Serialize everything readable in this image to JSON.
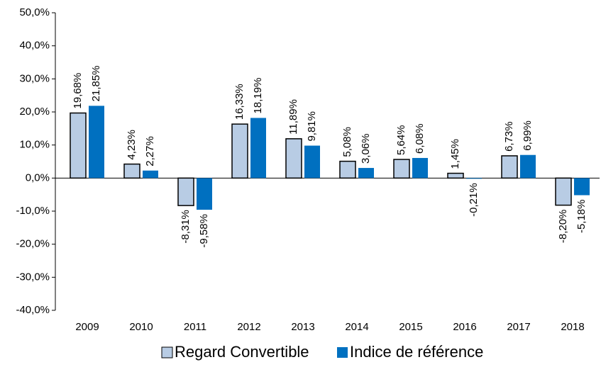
{
  "chart_data": {
    "type": "bar",
    "categories": [
      "2009",
      "2010",
      "2011",
      "2012",
      "2013",
      "2014",
      "2015",
      "2016",
      "2017",
      "2018"
    ],
    "series": [
      {
        "name": "Regard Convertible",
        "color": "#b8cce4",
        "values": [
          19.68,
          4.23,
          -8.31,
          16.33,
          11.89,
          5.08,
          5.64,
          1.45,
          6.73,
          -8.2
        ],
        "value_labels": [
          "19,68%",
          "4,23%",
          "-8,31%",
          "16,33%",
          "11,89%",
          "5,08%",
          "5,64%",
          "1,45%",
          "6,73%",
          "-8,20%"
        ]
      },
      {
        "name": "Indice de référence",
        "color": "#0070c0",
        "values": [
          21.85,
          2.27,
          -9.58,
          18.19,
          9.81,
          3.06,
          6.08,
          -0.21,
          6.99,
          -5.18
        ],
        "value_labels": [
          "21,85%",
          "2,27%",
          "-9,58%",
          "18,19%",
          "9,81%",
          "3,06%",
          "6,08%",
          "-0,21%",
          "6,99%",
          "-5,18%"
        ]
      }
    ],
    "ylim": [
      -40,
      50
    ],
    "yticks": [
      {
        "value": -40,
        "label": "-40,0%"
      },
      {
        "value": -30,
        "label": "-30,0%"
      },
      {
        "value": -20,
        "label": "-20,0%"
      },
      {
        "value": -10,
        "label": "-10,0%"
      },
      {
        "value": 0,
        "label": "0,0%"
      },
      {
        "value": 10,
        "label": "10,0%"
      },
      {
        "value": 20,
        "label": "20,0%"
      },
      {
        "value": 30,
        "label": "30,0%"
      },
      {
        "value": 40,
        "label": "40,0%"
      },
      {
        "value": 50,
        "label": "50,0%"
      }
    ],
    "legend": "bottom"
  }
}
